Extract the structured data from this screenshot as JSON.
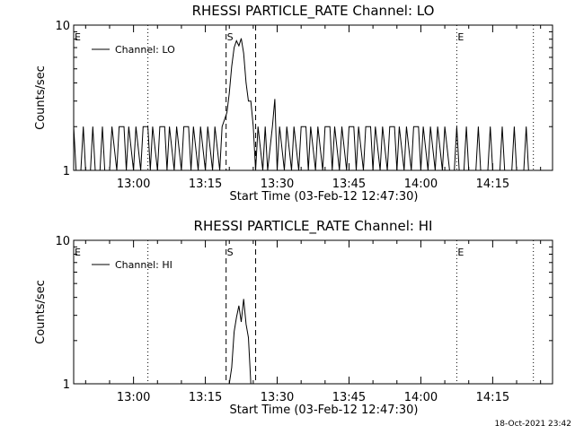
{
  "footer": {
    "timestamp": "18-Oct-2021 23:42"
  },
  "chart_data": [
    {
      "type": "line",
      "title": "RHESSI PARTICLE_RATE Channel: LO",
      "xlabel": "Start Time (03-Feb-12 12:47:30)",
      "ylabel": "Counts/sec",
      "y_scale": "log",
      "ylim": [
        1,
        10
      ],
      "y_ticks": [
        "1",
        "10"
      ],
      "xlim": [
        "12:47:30",
        "14:27:30"
      ],
      "x_ticks": [
        "13:00",
        "13:15",
        "13:30",
        "13:45",
        "14:00",
        "14:15"
      ],
      "legend": {
        "position": "top-left",
        "entries": [
          "Channel: LO"
        ]
      },
      "markers": [
        {
          "label": "E",
          "time": "12:47:30",
          "style": "none"
        },
        {
          "label": "",
          "time": "13:03:00",
          "style": "dotted"
        },
        {
          "label": "S",
          "time": "13:19:20",
          "style": "dashed"
        },
        {
          "label": "",
          "time": "13:25:30",
          "style": "dashed"
        },
        {
          "label": "E",
          "time": "14:07:30",
          "style": "dotted"
        },
        {
          "label": "",
          "time": "14:23:30",
          "style": "dotted"
        }
      ],
      "series": [
        {
          "name": "Channel: LO",
          "segments": [
            [
              [
                "12:47:30",
                2
              ],
              [
                "12:48:00",
                1
              ],
              [
                "12:49:00",
                1
              ],
              [
                "12:49:30",
                2
              ],
              [
                "12:50:00",
                1
              ],
              [
                "12:51:00",
                1
              ],
              [
                "12:51:30",
                2
              ],
              [
                "12:52:00",
                1
              ],
              [
                "12:53:00",
                1
              ],
              [
                "12:53:30",
                2
              ],
              [
                "12:54:00",
                1
              ],
              [
                "12:55:00",
                1
              ],
              [
                "12:55:30",
                2
              ],
              [
                "12:56:30",
                1
              ],
              [
                "12:57:00",
                2
              ],
              [
                "12:58:00",
                2
              ],
              [
                "12:58:30",
                1
              ],
              [
                "12:59:00",
                2
              ],
              [
                "13:00:00",
                1
              ],
              [
                "13:00:30",
                2
              ],
              [
                "13:01:30",
                1
              ],
              [
                "13:02:00",
                2
              ],
              [
                "13:03:00",
                2
              ],
              [
                "13:03:30",
                1
              ],
              [
                "13:04:00",
                2
              ],
              [
                "13:05:00",
                1
              ],
              [
                "13:05:30",
                2
              ],
              [
                "13:06:30",
                2
              ],
              [
                "13:07:00",
                1
              ],
              [
                "13:07:30",
                2
              ],
              [
                "13:08:30",
                1
              ],
              [
                "13:09:00",
                2
              ],
              [
                "13:10:00",
                1
              ],
              [
                "13:10:30",
                2
              ],
              [
                "13:11:30",
                2
              ],
              [
                "13:12:00",
                1
              ],
              [
                "13:12:30",
                2
              ],
              [
                "13:13:30",
                1
              ],
              [
                "13:14:00",
                2
              ],
              [
                "13:15:00",
                1
              ],
              [
                "13:15:30",
                2
              ],
              [
                "13:16:30",
                1
              ],
              [
                "13:17:00",
                2
              ],
              [
                "13:18:00",
                1
              ],
              [
                "13:18:30",
                2
              ],
              [
                "13:19:30",
                2.5
              ],
              [
                "13:20:00",
                3.4
              ],
              [
                "13:20:30",
                5.2
              ],
              [
                "13:21:00",
                7.0
              ],
              [
                "13:21:30",
                7.8
              ],
              [
                "13:22:00",
                7.2
              ],
              [
                "13:22:30",
                8.1
              ],
              [
                "13:23:00",
                6.4
              ],
              [
                "13:23:30",
                4.0
              ],
              [
                "13:24:00",
                3.0
              ],
              [
                "13:24:30",
                3.0
              ],
              [
                "13:25:00",
                2
              ],
              [
                "13:25:30",
                1
              ],
              [
                "13:26:00",
                2
              ],
              [
                "13:27:00",
                1
              ],
              [
                "13:27:30",
                2
              ],
              [
                "13:28:00",
                1
              ],
              [
                "13:29:00",
                2
              ],
              [
                "13:29:30",
                3.1
              ],
              [
                "13:30:00",
                1
              ],
              [
                "13:30:30",
                2
              ],
              [
                "13:31:30",
                1
              ],
              [
                "13:32:00",
                2
              ],
              [
                "13:33:00",
                1
              ],
              [
                "13:33:30",
                2
              ],
              [
                "13:34:30",
                1
              ],
              [
                "13:35:00",
                2
              ],
              [
                "13:36:00",
                2
              ],
              [
                "13:36:30",
                1
              ],
              [
                "13:37:00",
                2
              ],
              [
                "13:38:00",
                1
              ],
              [
                "13:38:30",
                2
              ],
              [
                "13:39:30",
                1
              ],
              [
                "13:40:00",
                2
              ],
              [
                "13:41:00",
                2
              ],
              [
                "13:41:30",
                1
              ],
              [
                "13:42:00",
                2
              ],
              [
                "13:43:00",
                1
              ],
              [
                "13:43:30",
                2
              ],
              [
                "13:44:30",
                1
              ],
              [
                "13:45:00",
                2
              ],
              [
                "13:46:00",
                2
              ],
              [
                "13:46:30",
                1
              ],
              [
                "13:47:00",
                2
              ],
              [
                "13:48:00",
                1
              ],
              [
                "13:48:30",
                2
              ],
              [
                "13:49:30",
                2
              ],
              [
                "13:50:00",
                1
              ],
              [
                "13:50:30",
                2
              ],
              [
                "13:51:30",
                1
              ],
              [
                "13:52:00",
                2
              ],
              [
                "13:53:00",
                1
              ],
              [
                "13:53:30",
                2
              ],
              [
                "13:54:30",
                2
              ],
              [
                "13:55:00",
                1
              ],
              [
                "13:55:30",
                2
              ],
              [
                "13:56:30",
                1
              ],
              [
                "13:57:00",
                2
              ],
              [
                "13:58:00",
                1
              ],
              [
                "13:58:30",
                2
              ],
              [
                "13:59:30",
                2
              ],
              [
                "14:00:00",
                1
              ],
              [
                "14:00:30",
                2
              ],
              [
                "14:01:30",
                1
              ],
              [
                "14:02:00",
                2
              ],
              [
                "14:03:00",
                1
              ],
              [
                "14:03:30",
                2
              ],
              [
                "14:04:30",
                1
              ],
              [
                "14:05:00",
                2
              ],
              [
                "14:06:00",
                1
              ],
              [
                "14:07:00",
                1
              ],
              [
                "14:07:30",
                2
              ],
              [
                "14:08:00",
                1
              ],
              [
                "14:09:00",
                1
              ],
              [
                "14:09:30",
                2
              ],
              [
                "14:10:00",
                1
              ],
              [
                "14:11:30",
                1
              ],
              [
                "14:12:00",
                2
              ],
              [
                "14:12:30",
                1
              ],
              [
                "14:14:00",
                1
              ],
              [
                "14:14:30",
                2
              ],
              [
                "14:15:00",
                1
              ],
              [
                "14:16:30",
                1
              ],
              [
                "14:17:00",
                2
              ],
              [
                "14:17:30",
                1
              ],
              [
                "14:19:00",
                1
              ],
              [
                "14:19:30",
                2
              ],
              [
                "14:20:00",
                1
              ],
              [
                "14:21:30",
                1
              ],
              [
                "14:22:00",
                2
              ],
              [
                "14:22:30",
                1
              ]
            ]
          ]
        }
      ]
    },
    {
      "type": "line",
      "title": "RHESSI PARTICLE_RATE Channel: HI",
      "xlabel": "Start Time (03-Feb-12 12:47:30)",
      "ylabel": "Counts/sec",
      "y_scale": "log",
      "ylim": [
        1,
        10
      ],
      "y_ticks": [
        "1",
        "10"
      ],
      "xlim": [
        "12:47:30",
        "14:27:30"
      ],
      "x_ticks": [
        "13:00",
        "13:15",
        "13:30",
        "13:45",
        "14:00",
        "14:15"
      ],
      "legend": {
        "position": "top-left",
        "entries": [
          "Channel: HI"
        ]
      },
      "markers": [
        {
          "label": "E",
          "time": "12:47:30",
          "style": "none"
        },
        {
          "label": "",
          "time": "13:03:00",
          "style": "dotted"
        },
        {
          "label": "S",
          "time": "13:19:20",
          "style": "dashed"
        },
        {
          "label": "",
          "time": "13:25:30",
          "style": "dashed"
        },
        {
          "label": "E",
          "time": "14:07:30",
          "style": "dotted"
        },
        {
          "label": "",
          "time": "14:23:30",
          "style": "dotted"
        }
      ],
      "series": [
        {
          "name": "Channel: HI",
          "segments": [
            [
              [
                "13:20:00",
                1
              ],
              [
                "13:20:30",
                1.3
              ],
              [
                "13:21:00",
                2.3
              ],
              [
                "13:21:30",
                2.9
              ],
              [
                "13:22:00",
                3.5
              ],
              [
                "13:22:30",
                2.7
              ],
              [
                "13:23:00",
                3.9
              ],
              [
                "13:23:30",
                2.6
              ],
              [
                "13:24:00",
                2.1
              ],
              [
                "13:24:30",
                1
              ]
            ]
          ]
        }
      ]
    }
  ]
}
